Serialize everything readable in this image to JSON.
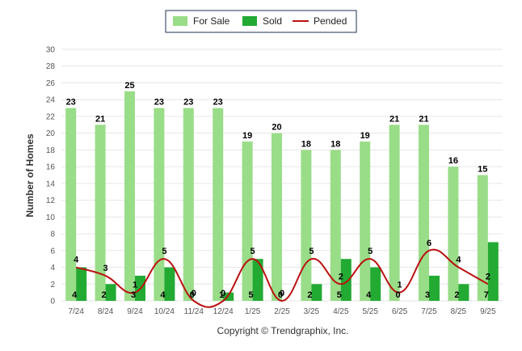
{
  "chart_data": {
    "type": "bar",
    "categories": [
      "7/24",
      "8/24",
      "9/24",
      "10/24",
      "11/24",
      "12/24",
      "1/25",
      "2/25",
      "3/25",
      "4/25",
      "5/25",
      "6/25",
      "7/25",
      "8/25",
      "9/25"
    ],
    "series": [
      {
        "name": "For Sale",
        "type": "bar",
        "color": "#99dd88",
        "values": [
          23,
          21,
          25,
          23,
          23,
          23,
          19,
          20,
          18,
          18,
          19,
          21,
          21,
          16,
          15
        ]
      },
      {
        "name": "Sold",
        "type": "bar",
        "color": "#22aa33",
        "values": [
          4,
          2,
          3,
          4,
          0,
          1,
          5,
          0,
          2,
          5,
          4,
          0,
          3,
          2,
          7
        ]
      },
      {
        "name": "Pended",
        "type": "line",
        "color": "#bb1111",
        "values": [
          4,
          3,
          1,
          5,
          0,
          0,
          5,
          0,
          5,
          2,
          5,
          1,
          6,
          4,
          2
        ]
      }
    ],
    "ylabel": "Number of Homes",
    "xlabel": "",
    "ylim": [
      0,
      30
    ],
    "yticks": [
      0,
      2,
      4,
      6,
      8,
      10,
      12,
      14,
      16,
      18,
      20,
      22,
      24,
      26,
      28,
      30
    ],
    "grid": true,
    "legend_position": "top-center"
  },
  "credit": "Copyright © Trendgraphix, Inc."
}
